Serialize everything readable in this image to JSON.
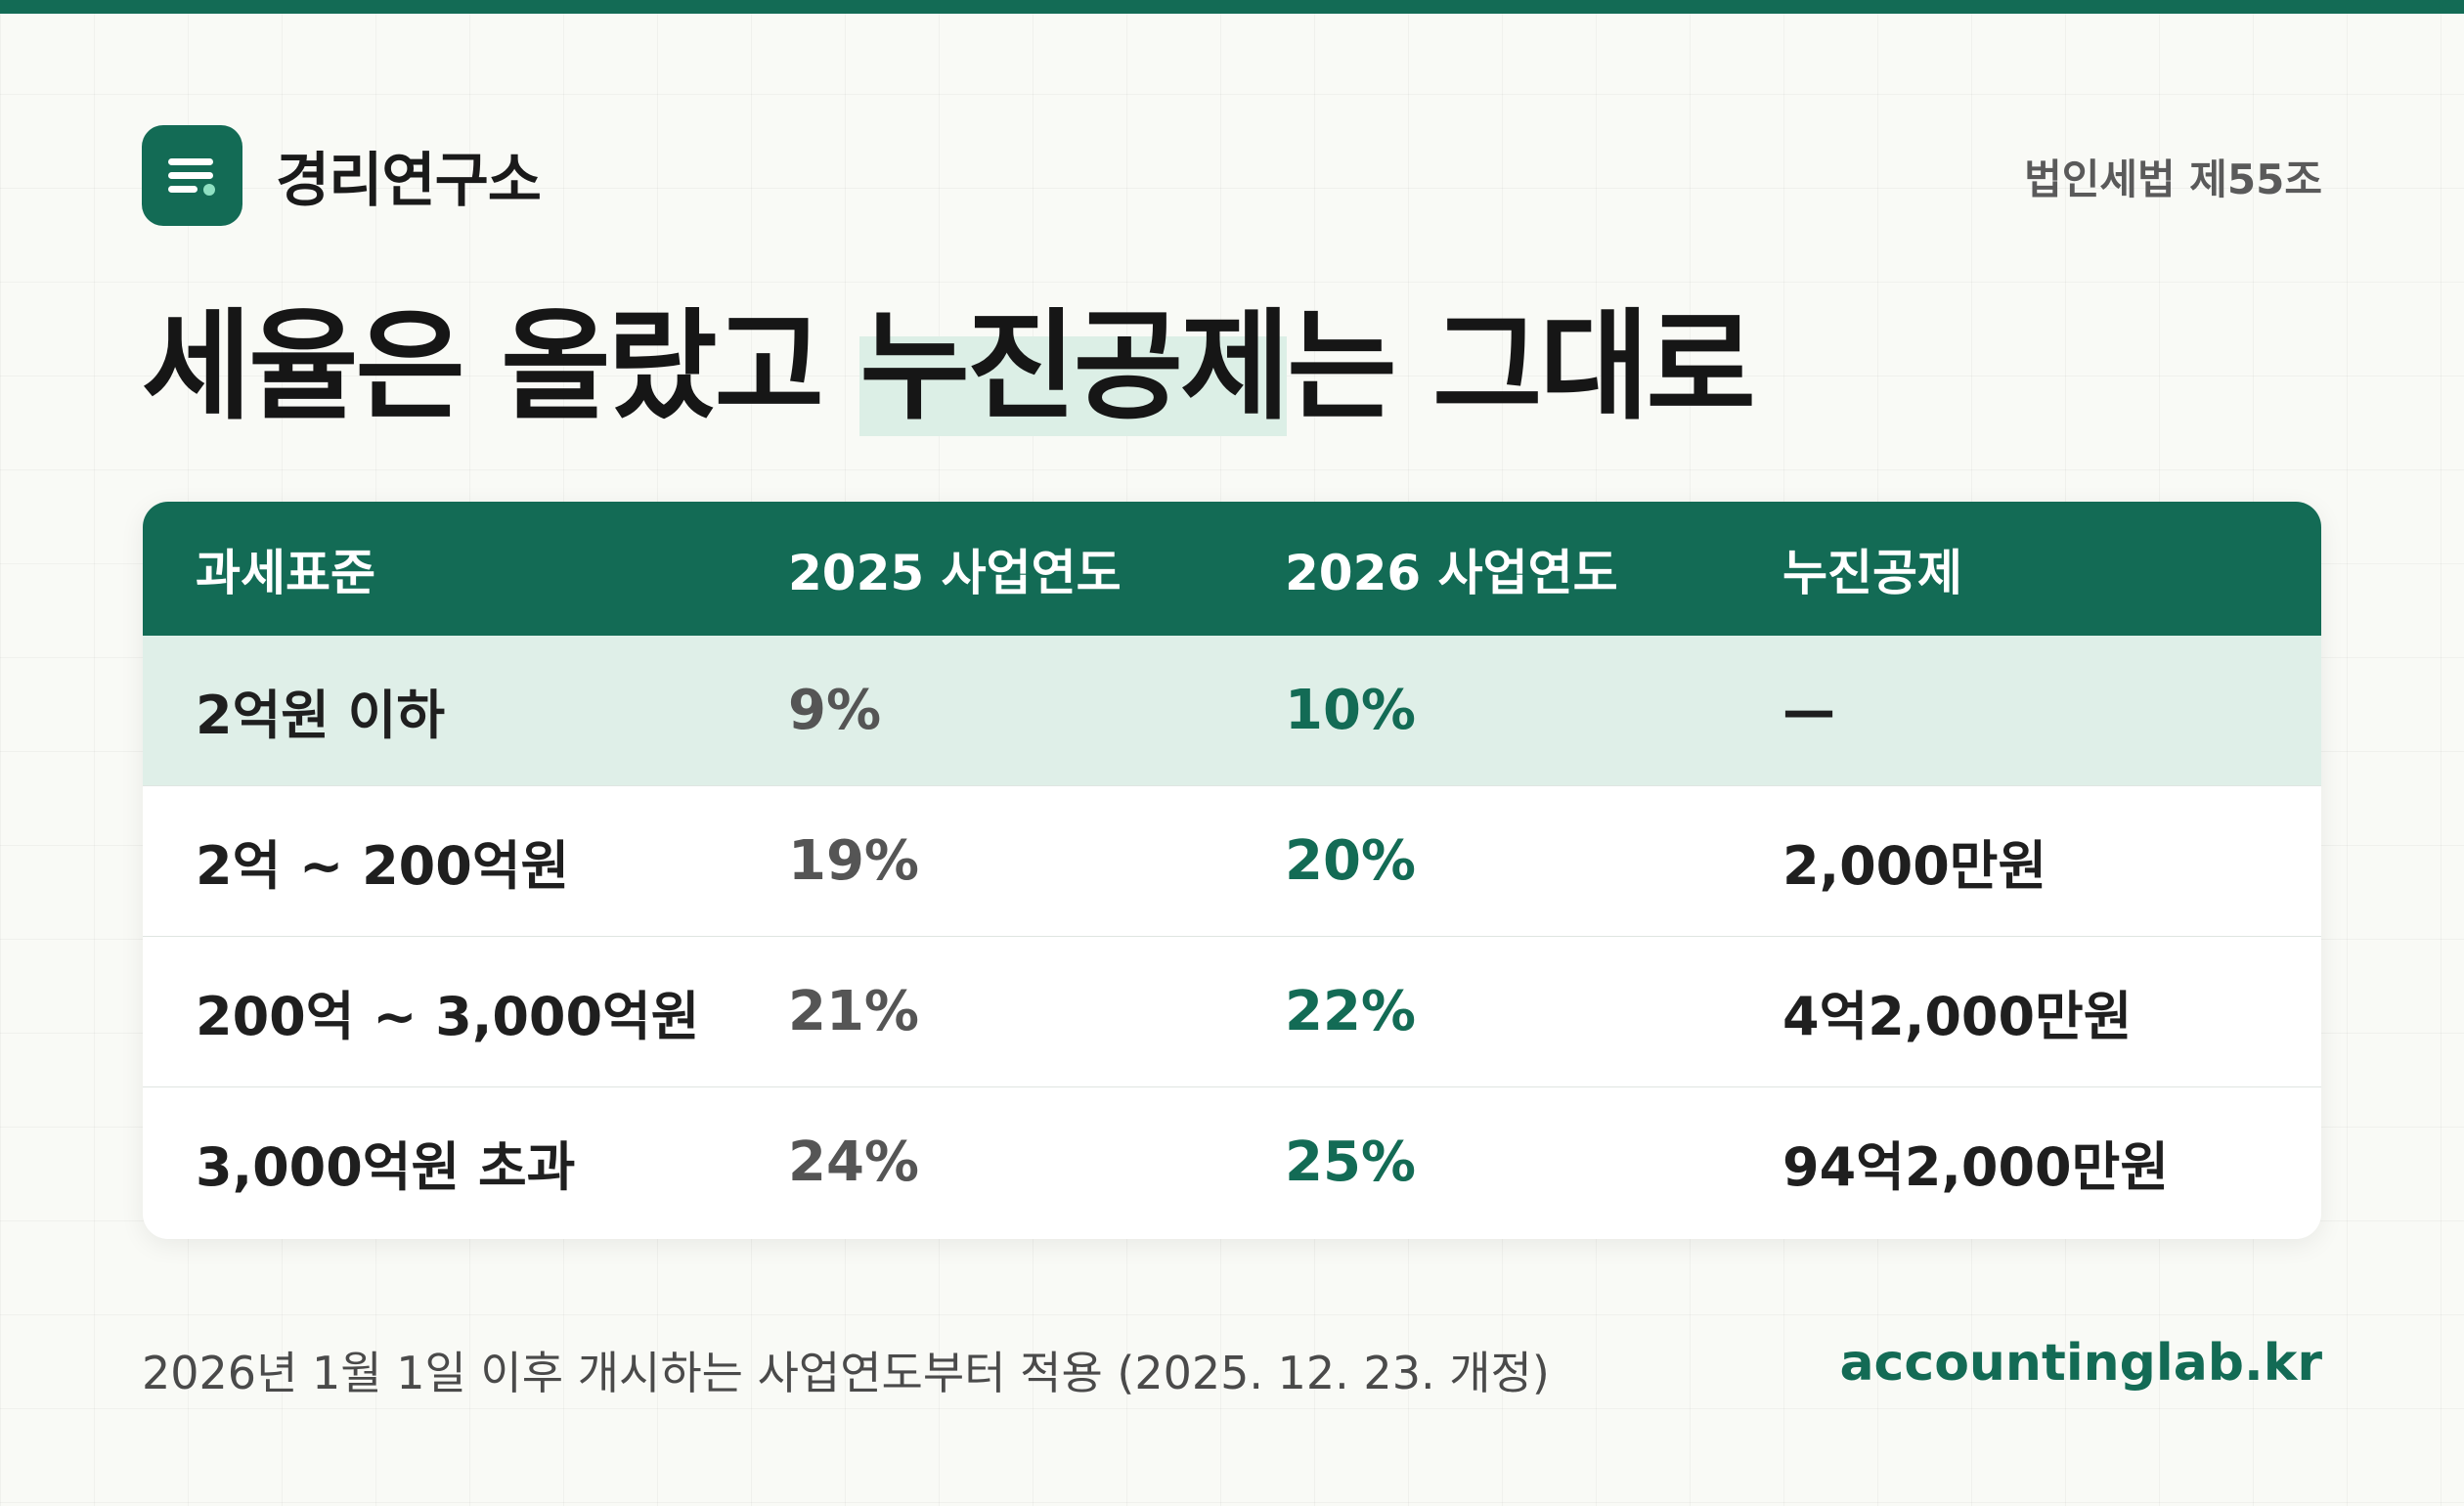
{
  "brand": {
    "name": "경리연구소",
    "logo_icon": "document-lines-icon",
    "accent_color": "#136b55"
  },
  "law_ref": "법인세법 제55조",
  "headline": {
    "part1": "세율은 올랐고 ",
    "highlight": "누진공제",
    "part2": "는 그대로"
  },
  "table": {
    "headers": [
      "과세표준",
      "2025 사업연도",
      "2026 사업연도",
      "누진공제"
    ],
    "rows": [
      {
        "bracket": "2억원 이하",
        "rate_2025": "9%",
        "rate_2026": "10%",
        "deduction": "—"
      },
      {
        "bracket": "2억 ~ 200억원",
        "rate_2025": "19%",
        "rate_2026": "20%",
        "deduction": "2,000만원"
      },
      {
        "bracket": "200억 ~ 3,000억원",
        "rate_2025": "21%",
        "rate_2026": "22%",
        "deduction": "4억2,000만원"
      },
      {
        "bracket": "3,000억원 초과",
        "rate_2025": "24%",
        "rate_2026": "25%",
        "deduction": "94억2,000만원"
      }
    ]
  },
  "footnote": "2026년 1월 1일 이후 개시하는 사업연도부터 적용 (2025. 12. 23. 개정)",
  "site": "accountinglab.kr"
}
